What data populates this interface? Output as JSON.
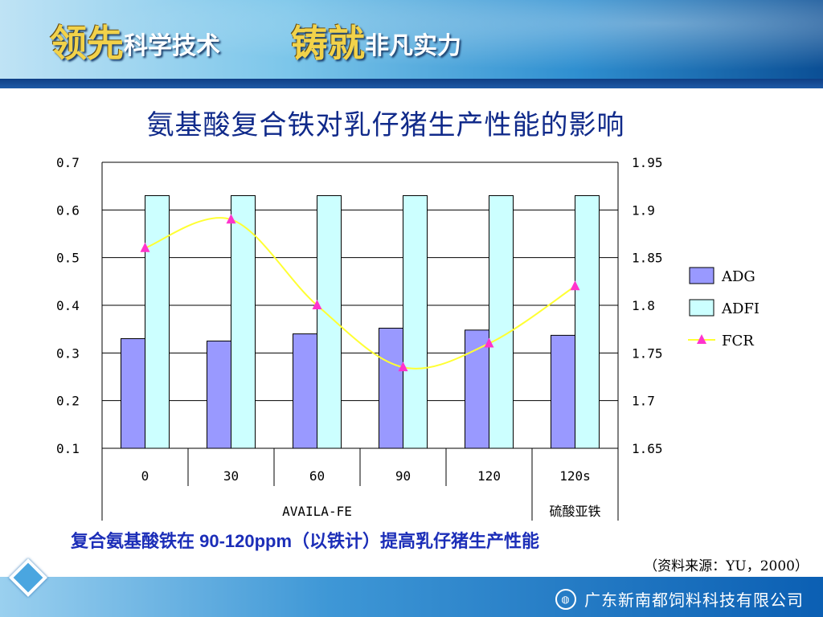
{
  "header": {
    "slogan_a_big": "领先",
    "slogan_a_small": "科学技术",
    "slogan_b_big": "铸就",
    "slogan_b_small": "非凡实力"
  },
  "slide": {
    "note": "复合氨基酸铁在 90-120ppm（以铁计）提高乳仔猪生产性能",
    "source": "（资料来源：YU，2000）"
  },
  "footer": {
    "company": "广东新南都饲料科技有限公司",
    "logo_icon": "company-logo-icon"
  },
  "colors": {
    "adg": "#9999ff",
    "adfi": "#ccffff",
    "fcr_line": "#ffff33",
    "fcr_marker": "#ff33cc",
    "title": "#102a8a",
    "note": "#1c2eb8"
  },
  "chart_data": {
    "type": "bar",
    "title": "氨基酸复合铁对乳仔猪生产性能的影响",
    "categories": [
      "0",
      "30",
      "60",
      "90",
      "120",
      "120s"
    ],
    "groups": [
      {
        "label": "AVAILA-FE",
        "span": 5
      },
      {
        "label": "硫酸亚铁",
        "span": 1
      }
    ],
    "series": [
      {
        "name": "ADG",
        "type": "bar",
        "axis": "left",
        "values": [
          0.33,
          0.325,
          0.34,
          0.352,
          0.348,
          0.337
        ]
      },
      {
        "name": "ADFI",
        "type": "bar",
        "axis": "left",
        "values": [
          0.63,
          0.63,
          0.63,
          0.63,
          0.63,
          0.63
        ]
      },
      {
        "name": "FCR",
        "type": "line",
        "axis": "right",
        "smooth": true,
        "values": [
          1.86,
          1.89,
          1.8,
          1.735,
          1.76,
          1.82
        ]
      }
    ],
    "y_left": {
      "min": 0.1,
      "max": 0.7,
      "ticks": [
        "0.7",
        "0.6",
        "0.5",
        "0.4",
        "0.3",
        "0.2",
        "0.1"
      ]
    },
    "y_right": {
      "min": 1.65,
      "max": 1.95,
      "ticks": [
        "1.95",
        "1.9",
        "1.85",
        "1.8",
        "1.75",
        "1.7",
        "1.65"
      ]
    },
    "grid": true,
    "legend": "right"
  }
}
